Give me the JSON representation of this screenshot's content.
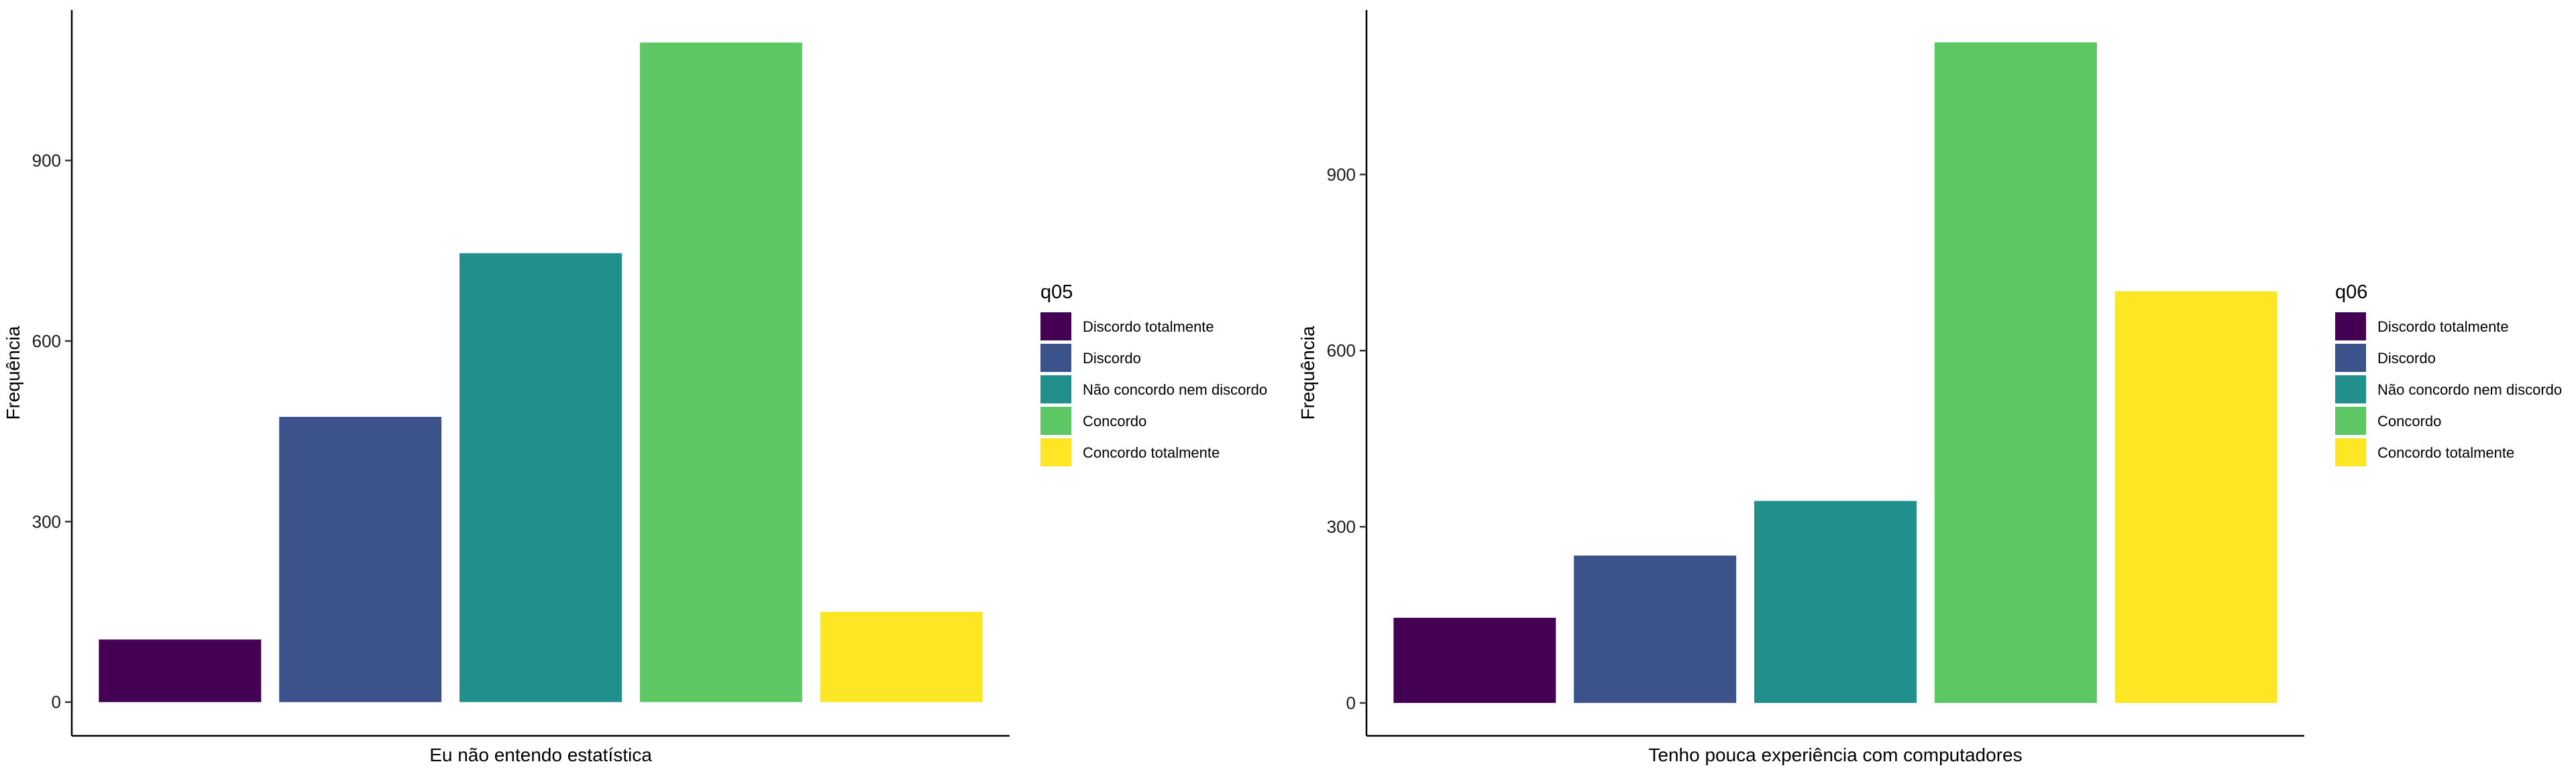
{
  "chart_data": [
    {
      "type": "bar",
      "legend_title": "q05",
      "xlabel": "Eu não entendo estatística",
      "ylabel": "Frequência",
      "categories": [
        "Discordo totalmente",
        "Discordo",
        "Não concordo nem discordo",
        "Concordo",
        "Concordo totalmente"
      ],
      "values": [
        104,
        474,
        746,
        1096,
        150
      ],
      "colors": [
        "#440154",
        "#3B528B",
        "#21908C",
        "#5DC863",
        "#FDE725"
      ],
      "yticks": [
        0,
        300,
        600,
        900
      ],
      "ylim": [
        -56,
        1150
      ],
      "grid": false,
      "legend_position": "right"
    },
    {
      "type": "bar",
      "legend_title": "q06",
      "xlabel": "Tenho pouca experiência com computadores",
      "ylabel": "Frequência",
      "categories": [
        "Discordo totalmente",
        "Discordo",
        "Não concordo nem discordo",
        "Concordo",
        "Concordo totalmente"
      ],
      "values": [
        145,
        251,
        344,
        1125,
        701
      ],
      "colors": [
        "#440154",
        "#3B528B",
        "#21908C",
        "#5DC863",
        "#FDE725"
      ],
      "yticks": [
        0,
        300,
        600,
        900
      ],
      "ylim": [
        -56,
        1180
      ],
      "grid": false,
      "legend_position": "right"
    }
  ]
}
